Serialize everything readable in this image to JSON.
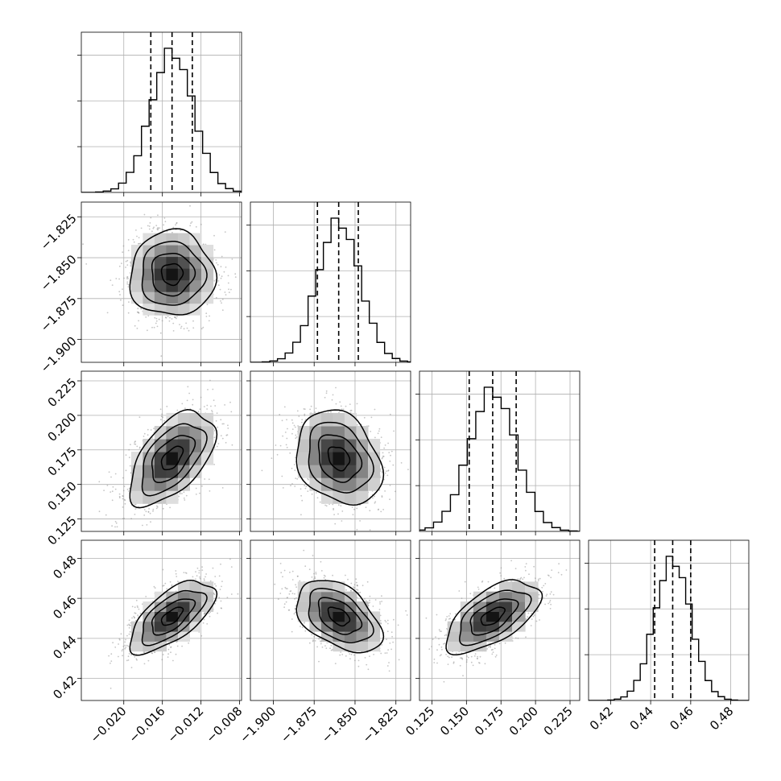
{
  "chart_data": {
    "type": "corner",
    "parameters": [
      {
        "name": "",
        "range": [
          -0.0244,
          -0.0078
        ],
        "ticks": [
          -0.02,
          -0.016,
          -0.012,
          -0.008
        ],
        "tick_labels": [
          "−0.020",
          "−0.016",
          "−0.012",
          "−0.008"
        ],
        "mean": -0.015,
        "std": 0.0022,
        "quantiles": [
          -0.0172,
          -0.015,
          -0.0129
        ]
      },
      {
        "name": "",
        "range": [
          -1.914,
          -1.816
        ],
        "ticks": [
          -1.9,
          -1.875,
          -1.85,
          -1.825
        ],
        "tick_labels": [
          "−1.900",
          "−1.875",
          "−1.850",
          "−1.825"
        ],
        "mean": -1.86,
        "std": 0.013,
        "quantiles": [
          -1.873,
          -1.86,
          -1.848
        ]
      },
      {
        "name": "",
        "range": [
          0.116,
          0.232
        ],
        "ticks": [
          0.125,
          0.15,
          0.175,
          0.2,
          0.225
        ],
        "tick_labels": [
          "0.125",
          "0.150",
          "0.175",
          "0.200",
          "0.225"
        ],
        "mean": 0.169,
        "std": 0.017,
        "quantiles": [
          0.152,
          0.169,
          0.186
        ]
      },
      {
        "name": "",
        "range": [
          0.409,
          0.489
        ],
        "ticks": [
          0.42,
          0.44,
          0.46,
          0.48
        ],
        "tick_labels": [
          "0.42",
          "0.44",
          "0.46",
          "0.48"
        ],
        "mean": 0.451,
        "std": 0.009,
        "quantiles": [
          0.442,
          0.451,
          0.46
        ]
      }
    ],
    "correlations": [
      [
        1.0,
        0.0,
        0.55,
        0.65
      ],
      [
        0.0,
        1.0,
        -0.25,
        -0.45
      ],
      [
        0.55,
        -0.25,
        1.0,
        0.6
      ],
      [
        0.65,
        -0.45,
        0.6,
        1.0
      ]
    ],
    "contour_levels_sigma": [
      0.5,
      1.0,
      1.5,
      2.0
    ],
    "grid": true,
    "quantile_lines": "dashed",
    "scatter_color": "#8c8c8c",
    "line_color": "#000000"
  }
}
